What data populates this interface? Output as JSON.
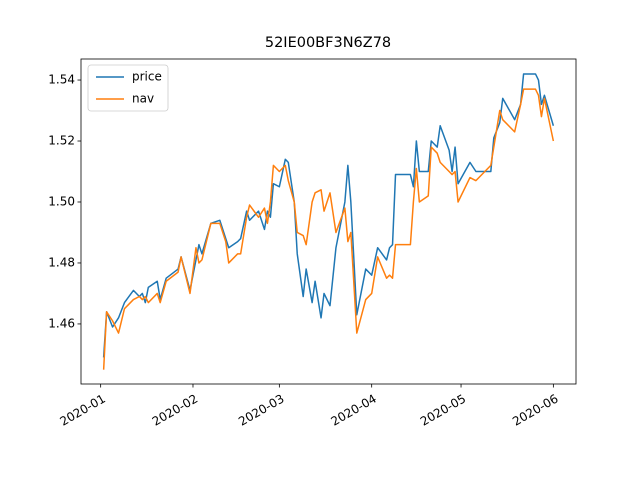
{
  "chart_data": {
    "type": "line",
    "title": "52IE00BF3N6Z78",
    "x": [
      1,
      2,
      4,
      6,
      8,
      11,
      13,
      14,
      15,
      16,
      19,
      20,
      22,
      26,
      27,
      30,
      32,
      33,
      34,
      37,
      40,
      42,
      43,
      46,
      47,
      49,
      50,
      53,
      55,
      56,
      57,
      58,
      60,
      62,
      63,
      65,
      66,
      68,
      69,
      71,
      72,
      74,
      75,
      77,
      79,
      82,
      83,
      84,
      86,
      89,
      91,
      93,
      96,
      97,
      98,
      99,
      104,
      105,
      106,
      107,
      110,
      111,
      113,
      114,
      117,
      118,
      119,
      120,
      124,
      126,
      131,
      132,
      134,
      135,
      139,
      141,
      142,
      146,
      147,
      148,
      149,
      152
    ],
    "series": [
      {
        "name": "price",
        "color": "#1f77b4",
        "values": [
          1.449,
          1.464,
          1.459,
          1.462,
          1.467,
          1.471,
          1.469,
          1.47,
          1.467,
          1.472,
          1.474,
          1.468,
          1.475,
          1.478,
          1.482,
          1.471,
          1.481,
          1.486,
          1.483,
          1.493,
          1.494,
          1.488,
          1.485,
          1.487,
          1.488,
          1.497,
          1.494,
          1.497,
          1.491,
          1.497,
          1.495,
          1.506,
          1.505,
          1.514,
          1.513,
          1.5,
          1.483,
          1.469,
          1.478,
          1.467,
          1.474,
          1.462,
          1.47,
          1.466,
          1.485,
          1.5,
          1.512,
          1.5,
          1.463,
          1.478,
          1.476,
          1.485,
          1.481,
          1.485,
          1.486,
          1.509,
          1.509,
          1.505,
          1.52,
          1.51,
          1.51,
          1.52,
          1.518,
          1.525,
          1.517,
          1.51,
          1.518,
          1.506,
          1.513,
          1.51,
          1.51,
          1.521,
          1.526,
          1.534,
          1.527,
          1.532,
          1.542,
          1.542,
          1.54,
          1.532,
          1.535,
          1.525
        ]
      },
      {
        "name": "nav",
        "color": "#ff7f0e",
        "values": [
          1.445,
          1.464,
          1.461,
          1.457,
          1.465,
          1.468,
          1.469,
          1.468,
          1.469,
          1.467,
          1.47,
          1.467,
          1.474,
          1.477,
          1.482,
          1.47,
          1.485,
          1.48,
          1.481,
          1.493,
          1.493,
          1.487,
          1.48,
          1.483,
          1.483,
          1.495,
          1.499,
          1.495,
          1.498,
          1.493,
          1.5,
          1.512,
          1.51,
          1.512,
          1.507,
          1.5,
          1.49,
          1.489,
          1.486,
          1.5,
          1.503,
          1.504,
          1.497,
          1.503,
          1.49,
          1.498,
          1.487,
          1.49,
          1.457,
          1.468,
          1.47,
          1.482,
          1.475,
          1.476,
          1.475,
          1.486,
          1.486,
          1.5,
          1.511,
          1.5,
          1.502,
          1.518,
          1.516,
          1.513,
          1.51,
          1.509,
          1.51,
          1.5,
          1.508,
          1.507,
          1.512,
          1.518,
          1.53,
          1.527,
          1.523,
          1.532,
          1.537,
          1.537,
          1.535,
          1.528,
          1.534,
          1.52
        ]
      }
    ],
    "xlim": [
      -6.6,
      159.6
    ],
    "xticks": [
      {
        "value": 0,
        "label": "2020-01"
      },
      {
        "value": 31,
        "label": "2020-02"
      },
      {
        "value": 60,
        "label": "2020-03"
      },
      {
        "value": 91,
        "label": "2020-04"
      },
      {
        "value": 121,
        "label": "2020-05"
      },
      {
        "value": 152,
        "label": "2020-06"
      }
    ],
    "ylim": [
      1.4403,
      1.5469
    ],
    "yticks": [
      1.46,
      1.48,
      {
        "value": 1.5,
        "label": "1.50"
      },
      1.52,
      1.54
    ],
    "legend": "upper left"
  }
}
